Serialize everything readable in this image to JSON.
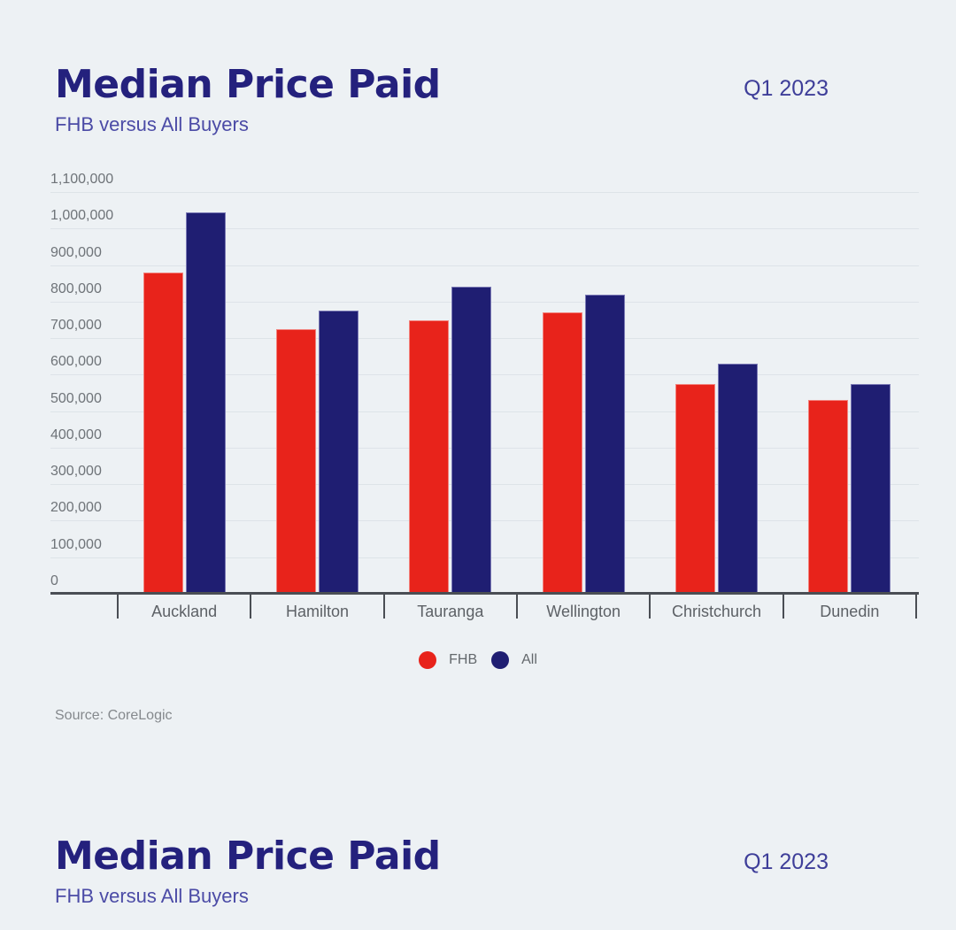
{
  "page": {
    "background_color": "#edf1f4",
    "title_color": "#24217d",
    "subtitle_color": "#4b4ba6"
  },
  "section1": {
    "title": "Median Price Paid",
    "subtitle": "FHB versus All Buyers",
    "period": "Q1 2023",
    "source": "Source: CoreLogic"
  },
  "section2": {
    "title": "Median Price Paid",
    "subtitle": "FHB versus All Buyers",
    "period": "Q1 2023"
  },
  "chart_data": {
    "type": "bar",
    "title": "Median Price Paid",
    "subtitle": "FHB versus All Buyers",
    "period": "Q1 2023",
    "categories": [
      "Auckland",
      "Hamilton",
      "Tauranga",
      "Wellington",
      "Christchurch",
      "Dunedin"
    ],
    "series": [
      {
        "name": "FHB",
        "color": "#e8231b",
        "values": [
          875000,
          720000,
          745000,
          765000,
          570000,
          525000
        ]
      },
      {
        "name": "All",
        "color": "#1f1e72",
        "values": [
          1040000,
          770000,
          835000,
          815000,
          625000,
          570000
        ]
      }
    ],
    "ylim": [
      0,
      1100000
    ],
    "ytick_step": 100000,
    "ytick_labels": [
      "0",
      "100,000",
      "200,000",
      "300,000",
      "400,000",
      "500,000",
      "600,000",
      "700,000",
      "800,000",
      "900,000",
      "1,000,000",
      "1,100,000"
    ],
    "grid": true,
    "legend_position": "bottom",
    "gridline_color": "#dde3e8",
    "axis_color": "#4a4e54"
  }
}
